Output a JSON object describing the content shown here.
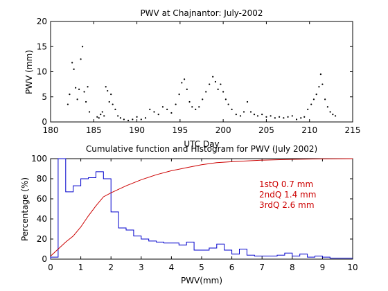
{
  "chart_data": [
    {
      "type": "scatter",
      "title": "PWV at Chajnantor: July-2002",
      "xlabel": "UTC Day",
      "ylabel": "PWV (mm)",
      "xlim": [
        180,
        215
      ],
      "ylim": [
        0,
        20
      ],
      "xticks": [
        "180",
        "185",
        "190",
        "195",
        "200",
        "205",
        "210",
        "215"
      ],
      "yticks": [
        "0",
        "5",
        "10",
        "15",
        "20"
      ],
      "grid": false,
      "series": [
        {
          "color": "#000000",
          "marker": "dot",
          "x": [
            182.0,
            182.2,
            182.5,
            182.7,
            182.9,
            183.1,
            183.3,
            183.5,
            183.7,
            183.9,
            184.1,
            184.3,
            184.5,
            185.4,
            185.6,
            185.8,
            186.0,
            186.2,
            186.4,
            186.6,
            186.8,
            187.0,
            187.2,
            187.5,
            187.8,
            188.1,
            188.5,
            189.0,
            189.5,
            190.0,
            190.5,
            191.0,
            191.5,
            192.0,
            192.5,
            193.0,
            193.5,
            194.0,
            194.5,
            194.9,
            195.2,
            195.5,
            195.8,
            196.1,
            196.4,
            196.8,
            197.2,
            197.6,
            198.0,
            198.4,
            198.8,
            199.1,
            199.4,
            199.7,
            200.0,
            200.3,
            200.6,
            201.0,
            201.5,
            202.0,
            202.4,
            202.8,
            203.2,
            203.6,
            204.0,
            204.5,
            205.0,
            205.5,
            206.0,
            206.5,
            207.0,
            207.5,
            208.0,
            208.5,
            209.0,
            209.4,
            209.8,
            210.2,
            210.5,
            210.8,
            211.1,
            211.3,
            211.5,
            211.8,
            212.1,
            212.4,
            212.7,
            213.0
          ],
          "y": [
            3.5,
            5.5,
            11.8,
            10.5,
            6.8,
            4.5,
            6.5,
            12.5,
            15.0,
            6.0,
            4.0,
            7.0,
            2.0,
            1.0,
            0.8,
            1.5,
            2.0,
            1.2,
            7.0,
            6.2,
            4.0,
            5.5,
            3.5,
            2.5,
            1.2,
            0.8,
            0.5,
            0.3,
            0.5,
            1.0,
            0.5,
            0.8,
            2.5,
            2.0,
            1.5,
            3.0,
            2.5,
            1.8,
            3.5,
            5.5,
            7.8,
            8.5,
            6.5,
            4.0,
            3.0,
            2.5,
            3.0,
            4.5,
            6.0,
            7.5,
            9.0,
            8.0,
            6.5,
            7.5,
            6.0,
            4.5,
            3.5,
            2.5,
            1.5,
            1.2,
            2.0,
            4.0,
            2.0,
            1.5,
            1.2,
            1.5,
            1.0,
            1.2,
            0.8,
            1.0,
            0.8,
            1.0,
            1.2,
            0.5,
            0.8,
            1.0,
            2.5,
            3.5,
            4.5,
            5.5,
            7.0,
            9.5,
            7.5,
            4.5,
            3.0,
            2.0,
            1.5,
            1.2
          ]
        }
      ]
    },
    {
      "type": "line",
      "title": "Cumulative function and Histogram for PWV (July 2002)",
      "xlabel": "PWV(mm)",
      "ylabel": "Percentage (%)",
      "xlim": [
        0,
        10
      ],
      "ylim": [
        0,
        100
      ],
      "xticks": [
        "0",
        "1",
        "2",
        "3",
        "4",
        "5",
        "6",
        "7",
        "8",
        "9",
        "10"
      ],
      "yticks": [
        "0",
        "20",
        "40",
        "60",
        "80",
        "100"
      ],
      "grid": false,
      "annotations": [
        "1stQ 0.7 mm",
        "2ndQ 1.4 mm",
        "3rdQ 2.6 mm"
      ],
      "annotation_color": "#cc0000",
      "series": [
        {
          "kind": "histogram",
          "color": "#0000cc",
          "bin_width": 0.25,
          "values": [
            2,
            100,
            67,
            73,
            80,
            81,
            87,
            80,
            47,
            31,
            29,
            23,
            20,
            18,
            17,
            16,
            16,
            14,
            17,
            9,
            9,
            11,
            15,
            9,
            5,
            10,
            4,
            3,
            3,
            3,
            4,
            6,
            3,
            5,
            2,
            3,
            2,
            1,
            1,
            1
          ]
        },
        {
          "kind": "cumulative",
          "color": "#cc0000",
          "x": [
            0,
            0.5,
            0.75,
            1.0,
            1.25,
            1.5,
            1.75,
            2.0,
            2.5,
            3.0,
            3.5,
            4.0,
            4.5,
            5.0,
            5.5,
            6.0,
            7.0,
            8.0,
            9.0,
            10.0
          ],
          "y": [
            3,
            17,
            23,
            32,
            43,
            53,
            62,
            66,
            73,
            79,
            84,
            88,
            91,
            94,
            96,
            97,
            98.5,
            99.3,
            99.8,
            100
          ]
        }
      ]
    }
  ]
}
